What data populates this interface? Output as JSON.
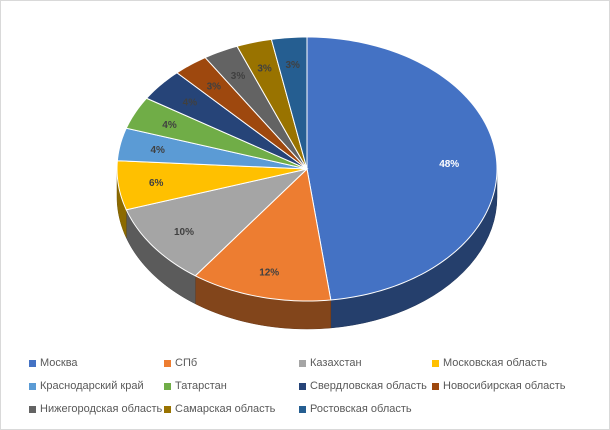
{
  "chart_data": {
    "type": "pie",
    "title": "",
    "categories": [
      "Москва",
      "СПб",
      "Казахстан",
      "Московская область",
      "Краснодарский край",
      "Татарстан",
      "Свердловская область",
      "Новосибирская область",
      "Нижегородская область",
      "Самарская область",
      "Ростовская область"
    ],
    "values": [
      48,
      12,
      10,
      6,
      4,
      4,
      4,
      3,
      3,
      3,
      3
    ],
    "data_labels": [
      "48%",
      "12%",
      "10%",
      "6%",
      "4%",
      "4%",
      "4%",
      "3%",
      "3%",
      "3%",
      "3%"
    ],
    "colors": [
      "#4472C4",
      "#ED7D31",
      "#A5A5A5",
      "#FFC000",
      "#5B9BD5",
      "#70AD47",
      "#264478",
      "#9E480E",
      "#636363",
      "#997300",
      "#255E91"
    ],
    "style": "3d-pie",
    "legend_position": "bottom"
  }
}
